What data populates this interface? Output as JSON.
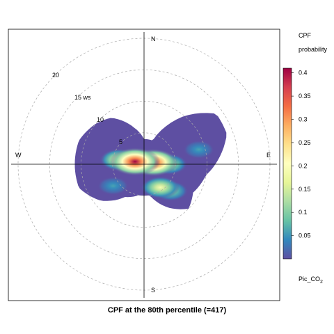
{
  "title": "CPF at the 80th percentile (=417)",
  "legend": {
    "title_line1": "CPF",
    "title_line2": "probability",
    "ticks": [
      "0.05",
      "0.1",
      "0.15",
      "0.2",
      "0.25",
      "0.3",
      "0.35",
      "0.4"
    ],
    "colors": [
      "#5E4FA2",
      "#3288BD",
      "#66C2A5",
      "#ABDDA4",
      "#E6F598",
      "#FFFFBF",
      "#FEE08B",
      "#FDAE61",
      "#F46D43",
      "#D53E4F",
      "#9E0142"
    ]
  },
  "pollutant": {
    "base": "Pic_CO",
    "sub": "2"
  },
  "directions": {
    "north": "N",
    "south": "S",
    "east": "E",
    "west": "W"
  },
  "ring_labels": [
    "5",
    "10",
    "15 ws",
    "20"
  ],
  "chart_data": {
    "type": "heatmap",
    "subtype": "polar-plot",
    "title": "CPF at the 80th percentile (=417)",
    "radial_variable": "ws",
    "radial_rings": [
      5,
      10,
      15,
      20
    ],
    "radial_max": 21,
    "color_scale": {
      "label": "CPF probability",
      "min": 0.0,
      "max": 0.41,
      "ticks": [
        0.05,
        0.1,
        0.15,
        0.2,
        0.25,
        0.3,
        0.35,
        0.4
      ],
      "palette": "spectral"
    },
    "background_level": 0.0,
    "hotspots": [
      {
        "direction_deg": 286,
        "ws": 1.5,
        "probability": 0.41
      },
      {
        "direction_deg": 80,
        "ws": 1.5,
        "probability": 0.39
      },
      {
        "direction_deg": 280,
        "ws": 4.0,
        "probability": 0.2
      },
      {
        "direction_deg": 90,
        "ws": 4.0,
        "probability": 0.15
      },
      {
        "direction_deg": 145,
        "ws": 4.5,
        "probability": 0.19
      },
      {
        "direction_deg": 135,
        "ws": 6.0,
        "probability": 0.12
      },
      {
        "direction_deg": 75,
        "ws": 9.0,
        "probability": 0.06
      },
      {
        "direction_deg": 235,
        "ws": 6.0,
        "probability": 0.06
      }
    ]
  }
}
